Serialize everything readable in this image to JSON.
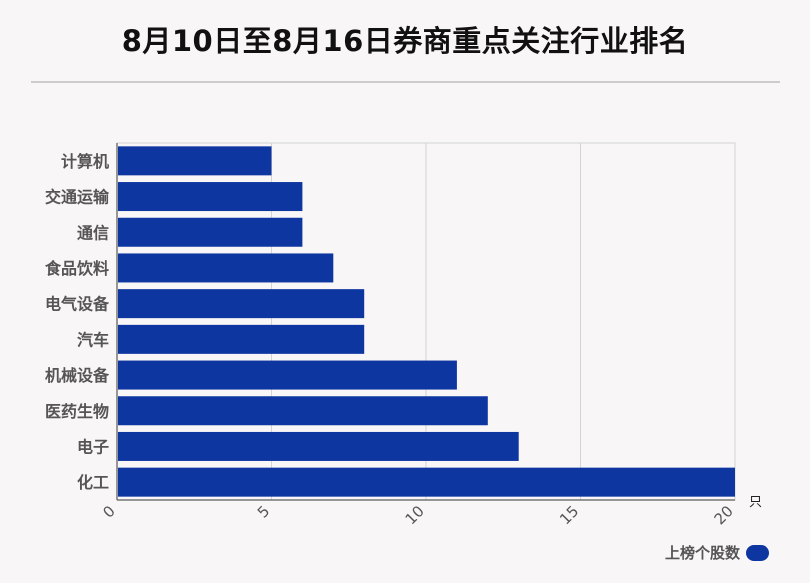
{
  "title": "8月10日至8月16日券商重点关注行业排名",
  "chart_data": {
    "type": "bar",
    "orientation": "horizontal",
    "categories": [
      "计算机",
      "交通运输",
      "通信",
      "食品饮料",
      "电气设备",
      "汽车",
      "机械设备",
      "医药生物",
      "电子",
      "化工"
    ],
    "series": [
      {
        "name": "上榜个股数",
        "values": [
          5,
          6,
          6,
          7,
          8,
          8,
          11,
          12,
          13,
          20
        ]
      }
    ],
    "xlim": [
      0,
      20
    ],
    "xticks": [
      "0",
      "5",
      "10",
      "15",
      "20"
    ],
    "x_unit": "只",
    "grid": true,
    "legend_position": "bottom-right",
    "bar_color": "#0e36a0"
  }
}
